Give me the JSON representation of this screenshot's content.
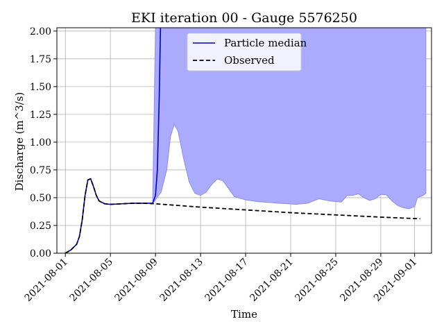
{
  "chart_data": {
    "type": "line",
    "title": "EKI iteration 00 - Gauge 5576250",
    "xlabel": "Time",
    "ylabel": "Discharge (m^3/s)",
    "xlim": [
      "2021-07-31T06:00",
      "2021-09-02T12:00"
    ],
    "ylim": [
      0,
      2.03
    ],
    "grid": true,
    "legend_position": "top-center",
    "x_ticks": [
      "2021-08-01",
      "2021-08-05",
      "2021-08-09",
      "2021-08-13",
      "2021-08-17",
      "2021-08-21",
      "2021-08-25",
      "2021-08-29",
      "2021-09-01"
    ],
    "y_ticks": [
      "0.00",
      "0.25",
      "0.50",
      "0.75",
      "1.00",
      "1.25",
      "1.50",
      "1.75",
      "2.00"
    ],
    "colors": {
      "median": "#0000cc",
      "band_fill": "#aaaaff",
      "band_edge": "#8c8cf0",
      "observed": "#000000",
      "grid": "#b0b0b0"
    },
    "series": [
      {
        "name": "Particle median",
        "style": "solid",
        "points": [
          [
            "2021-08-01T00:00",
            0.0
          ],
          [
            "2021-08-01T12:00",
            0.03
          ],
          [
            "2021-08-02T00:00",
            0.08
          ],
          [
            "2021-08-02T06:00",
            0.15
          ],
          [
            "2021-08-02T12:00",
            0.3
          ],
          [
            "2021-08-02T18:00",
            0.52
          ],
          [
            "2021-08-03T00:00",
            0.66
          ],
          [
            "2021-08-03T06:00",
            0.67
          ],
          [
            "2021-08-03T12:00",
            0.6
          ],
          [
            "2021-08-03T18:00",
            0.52
          ],
          [
            "2021-08-04T00:00",
            0.47
          ],
          [
            "2021-08-04T12:00",
            0.445
          ],
          [
            "2021-08-05T00:00",
            0.44
          ],
          [
            "2021-08-06T00:00",
            0.445
          ],
          [
            "2021-08-07T00:00",
            0.45
          ],
          [
            "2021-08-08T00:00",
            0.45
          ],
          [
            "2021-08-08T18:00",
            0.45
          ],
          [
            "2021-08-09T00:00",
            0.52
          ],
          [
            "2021-08-09T04:00",
            0.75
          ],
          [
            "2021-08-09T08:00",
            1.4
          ],
          [
            "2021-08-09T11:00",
            2.1
          ]
        ]
      },
      {
        "name": "Observed",
        "style": "dashed",
        "points": [
          [
            "2021-08-01T00:00",
            0.0
          ],
          [
            "2021-08-01T12:00",
            0.03
          ],
          [
            "2021-08-02T00:00",
            0.08
          ],
          [
            "2021-08-02T06:00",
            0.15
          ],
          [
            "2021-08-02T12:00",
            0.3
          ],
          [
            "2021-08-02T18:00",
            0.52
          ],
          [
            "2021-08-03T00:00",
            0.66
          ],
          [
            "2021-08-03T06:00",
            0.67
          ],
          [
            "2021-08-03T12:00",
            0.6
          ],
          [
            "2021-08-03T18:00",
            0.52
          ],
          [
            "2021-08-04T00:00",
            0.47
          ],
          [
            "2021-08-04T12:00",
            0.445
          ],
          [
            "2021-08-05T00:00",
            0.44
          ],
          [
            "2021-08-06T00:00",
            0.445
          ],
          [
            "2021-08-07T00:00",
            0.45
          ],
          [
            "2021-08-08T00:00",
            0.45
          ],
          [
            "2021-08-09T00:00",
            0.445
          ],
          [
            "2021-08-13T00:00",
            0.415
          ],
          [
            "2021-08-17T00:00",
            0.39
          ],
          [
            "2021-08-21T00:00",
            0.365
          ],
          [
            "2021-08-25T00:00",
            0.345
          ],
          [
            "2021-08-29T00:00",
            0.325
          ],
          [
            "2021-09-01T12:00",
            0.31
          ]
        ]
      }
    ],
    "band": {
      "lower": [
        [
          "2021-08-08T18:00",
          0.45
        ],
        [
          "2021-08-09T00:00",
          0.48
        ],
        [
          "2021-08-09T12:00",
          0.55
        ],
        [
          "2021-08-10T00:00",
          0.75
        ],
        [
          "2021-08-10T08:00",
          1.05
        ],
        [
          "2021-08-10T16:00",
          1.16
        ],
        [
          "2021-08-11T00:00",
          1.1
        ],
        [
          "2021-08-11T12:00",
          0.85
        ],
        [
          "2021-08-12T00:00",
          0.64
        ],
        [
          "2021-08-12T12:00",
          0.54
        ],
        [
          "2021-08-13T00:00",
          0.52
        ],
        [
          "2021-08-13T12:00",
          0.55
        ],
        [
          "2021-08-14T00:00",
          0.62
        ],
        [
          "2021-08-14T12:00",
          0.67
        ],
        [
          "2021-08-15T00:00",
          0.65
        ],
        [
          "2021-08-15T12:00",
          0.58
        ],
        [
          "2021-08-16T00:00",
          0.51
        ],
        [
          "2021-08-17T00:00",
          0.48
        ],
        [
          "2021-08-18T00:00",
          0.465
        ],
        [
          "2021-08-20T00:00",
          0.45
        ],
        [
          "2021-08-21T12:00",
          0.44
        ],
        [
          "2021-08-22T12:00",
          0.45
        ],
        [
          "2021-08-23T12:00",
          0.49
        ],
        [
          "2021-08-24T12:00",
          0.47
        ],
        [
          "2021-08-25T12:00",
          0.46
        ],
        [
          "2021-08-26T00:00",
          0.52
        ],
        [
          "2021-08-26T12:00",
          0.52
        ],
        [
          "2021-08-27T00:00",
          0.535
        ],
        [
          "2021-08-27T12:00",
          0.5
        ],
        [
          "2021-08-28T00:00",
          0.475
        ],
        [
          "2021-08-28T12:00",
          0.49
        ],
        [
          "2021-08-29T00:00",
          0.53
        ],
        [
          "2021-08-29T12:00",
          0.525
        ],
        [
          "2021-08-30T00:00",
          0.47
        ],
        [
          "2021-08-30T12:00",
          0.43
        ],
        [
          "2021-08-31T00:00",
          0.41
        ],
        [
          "2021-08-31T12:00",
          0.4
        ],
        [
          "2021-09-01T00:00",
          0.42
        ],
        [
          "2021-09-01T06:00",
          0.5
        ],
        [
          "2021-09-01T18:00",
          0.52
        ],
        [
          "2021-09-02T00:00",
          0.54
        ]
      ],
      "upper_value": 2.03,
      "upper_start": "2021-08-09T00:00",
      "upper_end": "2021-09-02T00:00"
    }
  }
}
